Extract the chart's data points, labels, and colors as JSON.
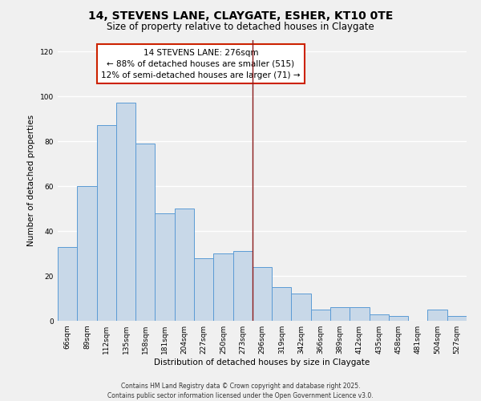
{
  "title": "14, STEVENS LANE, CLAYGATE, ESHER, KT10 0TE",
  "subtitle": "Size of property relative to detached houses in Claygate",
  "xlabel": "Distribution of detached houses by size in Claygate",
  "ylabel": "Number of detached properties",
  "categories": [
    "66sqm",
    "89sqm",
    "112sqm",
    "135sqm",
    "158sqm",
    "181sqm",
    "204sqm",
    "227sqm",
    "250sqm",
    "273sqm",
    "296sqm",
    "319sqm",
    "342sqm",
    "366sqm",
    "389sqm",
    "412sqm",
    "435sqm",
    "458sqm",
    "481sqm",
    "504sqm",
    "527sqm"
  ],
  "values": [
    33,
    60,
    87,
    97,
    79,
    48,
    50,
    28,
    30,
    31,
    24,
    15,
    12,
    5,
    6,
    6,
    3,
    2,
    0,
    5,
    2
  ],
  "bar_color": "#c8d8e8",
  "bar_edge_color": "#5b9bd5",
  "vline_x_index": 9,
  "vline_color": "#8b1a1a",
  "annotation_text": "14 STEVENS LANE: 276sqm\n← 88% of detached houses are smaller (515)\n12% of semi-detached houses are larger (71) →",
  "annotation_box_facecolor": "#ffffff",
  "annotation_box_edgecolor": "#cc2200",
  "ylim": [
    0,
    125
  ],
  "yticks": [
    0,
    20,
    40,
    60,
    80,
    100,
    120
  ],
  "footer_line1": "Contains HM Land Registry data © Crown copyright and database right 2025.",
  "footer_line2": "Contains public sector information licensed under the Open Government Licence v3.0.",
  "background_color": "#f0f0f0",
  "grid_color": "#ffffff",
  "title_fontsize": 10,
  "subtitle_fontsize": 8.5,
  "axis_label_fontsize": 7.5,
  "tick_fontsize": 6.5,
  "annotation_fontsize": 7.5,
  "footer_fontsize": 5.5
}
